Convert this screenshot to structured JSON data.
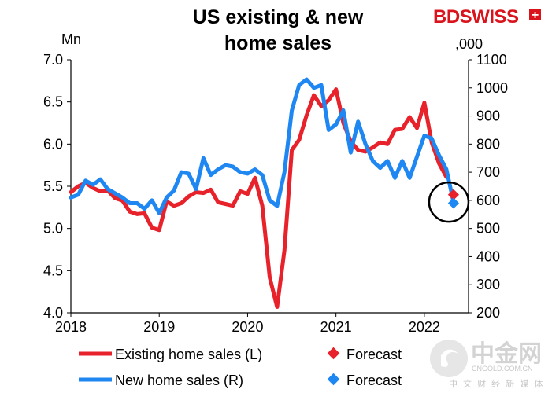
{
  "brand": {
    "name": "BDSWISS",
    "plus": "+"
  },
  "watermark": {
    "name": "中金网",
    "domain": "CNGOLD.COM.CN",
    "tagline": "中 文 财 经 新 媒 体"
  },
  "colors": {
    "existing": "#e8222b",
    "new": "#1f87f2",
    "highlight": "#000000",
    "brand": "#d9141c"
  },
  "chart_data": {
    "type": "line",
    "title_lines": [
      "US existing & new",
      "home sales"
    ],
    "left_axis": {
      "unit": "Mn",
      "range": [
        4.0,
        7.0
      ],
      "ticks": [
        "4.0",
        "4.5",
        "5.0",
        "5.5",
        "6.0",
        "6.5",
        "7.0"
      ]
    },
    "right_axis": {
      "unit": ",000",
      "range": [
        200,
        1100
      ],
      "ticks": [
        "200",
        "300",
        "400",
        "500",
        "600",
        "700",
        "800",
        "900",
        "1000",
        "1100"
      ]
    },
    "x_axis": {
      "range": [
        2018.0,
        2022.5
      ],
      "ticks": [
        "2018",
        "2019",
        "2020",
        "2021",
        "2022"
      ]
    },
    "series": [
      {
        "name": "Existing home sales (L)",
        "axis": "left",
        "start": 2018.0,
        "step_months": 1,
        "values": [
          5.43,
          5.5,
          5.54,
          5.48,
          5.44,
          5.45,
          5.36,
          5.33,
          5.2,
          5.17,
          5.18,
          5.01,
          4.98,
          5.32,
          5.27,
          5.3,
          5.38,
          5.43,
          5.42,
          5.46,
          5.31,
          5.29,
          5.27,
          5.44,
          5.41,
          5.6,
          5.27,
          4.42,
          4.07,
          4.74,
          5.93,
          6.05,
          6.34,
          6.58,
          6.45,
          6.52,
          6.65,
          6.25,
          6.03,
          5.93,
          5.91,
          5.96,
          6.02,
          6.0,
          6.17,
          6.18,
          6.32,
          6.19,
          6.49,
          6.02,
          5.77,
          5.61
        ]
      },
      {
        "name": "New home sales (R)",
        "axis": "right",
        "start": 2018.0,
        "step_months": 1,
        "values": [
          610,
          620,
          670,
          655,
          675,
          640,
          625,
          610,
          590,
          590,
          570,
          600,
          555,
          610,
          635,
          700,
          695,
          640,
          750,
          690,
          710,
          725,
          720,
          700,
          695,
          710,
          690,
          600,
          580,
          700,
          920,
          1010,
          1030,
          1000,
          1010,
          850,
          870,
          920,
          770,
          880,
          800,
          740,
          715,
          740,
          680,
          740,
          680,
          755,
          830,
          820,
          760,
          710,
          590
        ]
      }
    ],
    "forecast": [
      {
        "name": "Forecast",
        "series": "Existing home sales (L)",
        "x": 2022.33,
        "value": 5.4
      },
      {
        "name": "Forecast",
        "series": "New home sales (R)",
        "x": 2022.33,
        "value": 590
      }
    ],
    "legend": [
      {
        "label": "Existing home sales (L)",
        "kind": "line",
        "color": "#e8222b"
      },
      {
        "label": "Forecast",
        "kind": "marker",
        "color": "#e8222b"
      },
      {
        "label": "New home sales (R)",
        "kind": "line",
        "color": "#1f87f2"
      },
      {
        "label": "Forecast",
        "kind": "marker",
        "color": "#1f87f2"
      }
    ],
    "annotation": "circle around the 2022 forecast points",
    "grid": false
  }
}
